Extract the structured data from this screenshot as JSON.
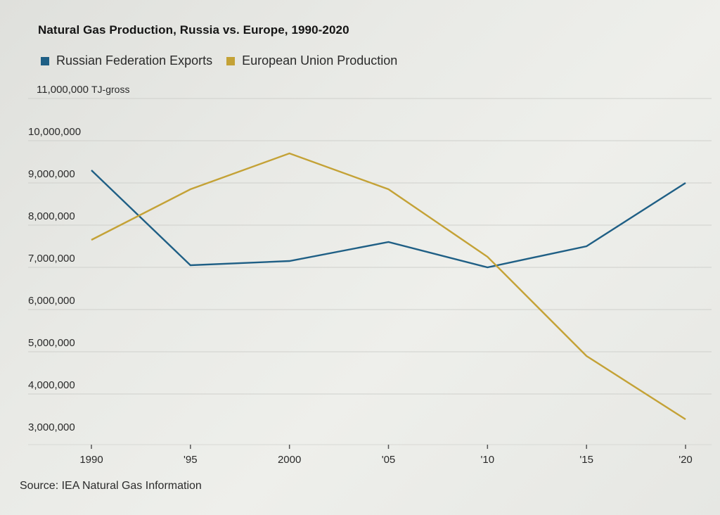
{
  "chart_data": {
    "type": "line",
    "title": "Natural Gas Production, Russia vs. Europe, 1990-2020",
    "y_unit": "TJ-gross",
    "x": [
      1990,
      1995,
      2000,
      2005,
      2010,
      2015,
      2020
    ],
    "x_tick_labels": [
      "1990",
      "'95",
      "2000",
      "'05",
      "'10",
      "'15",
      "'20"
    ],
    "y_tick_values": [
      3000000,
      4000000,
      5000000,
      6000000,
      7000000,
      8000000,
      9000000,
      10000000,
      11000000
    ],
    "y_tick_labels": [
      "3,000,000",
      "4,000,000",
      "5,000,000",
      "6,000,000",
      "7,000,000",
      "8,000,000",
      "9,000,000",
      "10,000,000",
      "11,000,000"
    ],
    "ylim": [
      3000000,
      11000000
    ],
    "xlim": [
      1990,
      2020
    ],
    "grid": true,
    "legend_position": "top-left",
    "series": [
      {
        "name": "Russian Federation Exports",
        "color": "#1f5f85",
        "values": [
          9300000,
          7050000,
          7150000,
          7600000,
          7000000,
          7500000,
          9000000
        ]
      },
      {
        "name": "European Union Production",
        "color": "#c4a236",
        "values": [
          7650000,
          8850000,
          9700000,
          8850000,
          7250000,
          4900000,
          3400000
        ]
      }
    ]
  },
  "source": "Source: IEA Natural Gas Information"
}
